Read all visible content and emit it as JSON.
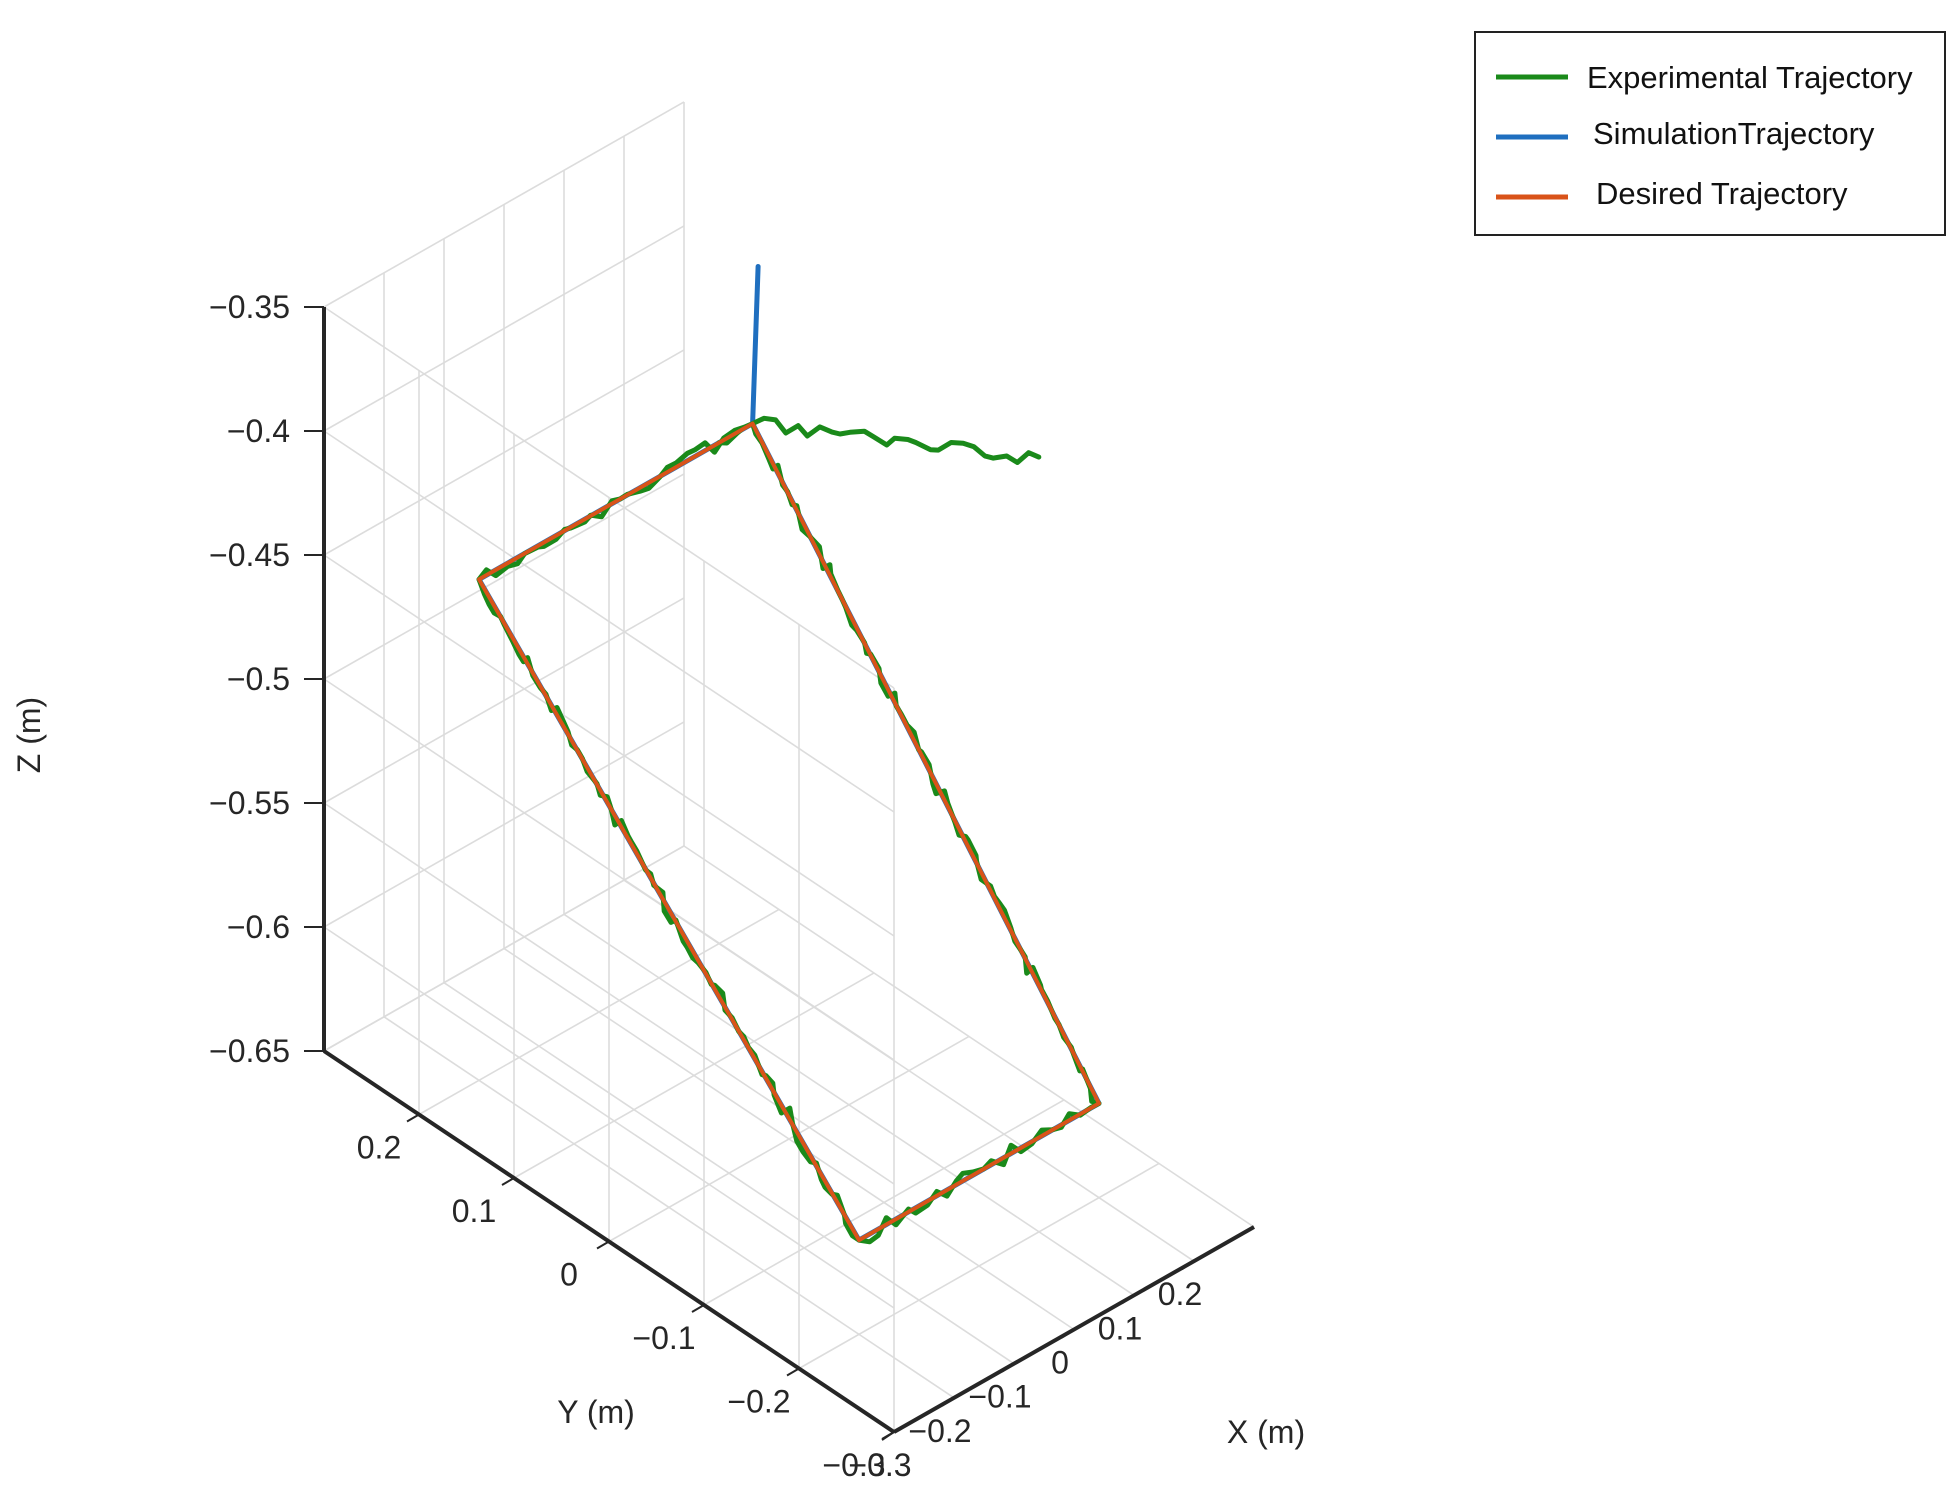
{
  "chart_data": {
    "type": "line3d",
    "title": "",
    "xlabel": "X (m)",
    "ylabel": "Y (m)",
    "zlabel": "Z (m)",
    "xlim": [
      -0.3,
      0.3
    ],
    "ylim": [
      -0.3,
      0.3
    ],
    "zlim": [
      -0.65,
      -0.35
    ],
    "x_ticks": [
      "−0.3",
      "−0.2",
      "−0.1",
      "0",
      "0.1",
      "0.2"
    ],
    "y_ticks": [
      "−0.3",
      "−0.2",
      "−0.1",
      "0",
      "0.1",
      "0.2"
    ],
    "z_ticks": [
      "−0.65",
      "−0.6",
      "−0.55",
      "−0.5",
      "−0.45",
      "−0.4",
      "−0.35"
    ],
    "grid": true,
    "legend_position": "top-right",
    "series": [
      {
        "name": "Experimental Trajectory",
        "color": "#1a8a1a",
        "noise": true,
        "points": [
          [
            0.258,
            -0.1,
            -0.385
          ],
          [
            0.256,
            0.2,
            -0.448
          ],
          [
            -0.2,
            0.2,
            -0.448
          ],
          [
            -0.2,
            -0.2,
            -0.612
          ],
          [
            0.2,
            -0.2,
            -0.612
          ],
          [
            0.256,
            0.2,
            -0.448
          ],
          [
            0.2,
            0.2,
            -0.448
          ]
        ]
      },
      {
        "name": "SimulationTrajectory",
        "color": "#1f6fbf",
        "noise": false,
        "points": [
          [
            0.262,
            0.198,
            -0.385
          ],
          [
            0.256,
            0.2,
            -0.448
          ],
          [
            -0.2,
            0.2,
            -0.448
          ],
          [
            -0.2,
            -0.2,
            -0.612
          ],
          [
            0.2,
            -0.2,
            -0.612
          ],
          [
            0.256,
            0.2,
            -0.448
          ]
        ]
      },
      {
        "name": "Desired Trajectory",
        "color": "#d95319",
        "noise": false,
        "points": [
          [
            0.256,
            0.2,
            -0.448
          ],
          [
            -0.2,
            0.2,
            -0.448
          ],
          [
            -0.2,
            -0.2,
            -0.612
          ],
          [
            0.2,
            -0.2,
            -0.612
          ],
          [
            0.256,
            0.2,
            -0.448
          ]
        ]
      }
    ]
  },
  "legend": {
    "entries": [
      {
        "label": "Experimental Trajectory",
        "color": "#1a8a1a"
      },
      {
        "label": "SimulationTrajectory",
        "color": "#1f6fbf"
      },
      {
        "label": "Desired Trajectory",
        "color": "#d95319"
      }
    ]
  }
}
